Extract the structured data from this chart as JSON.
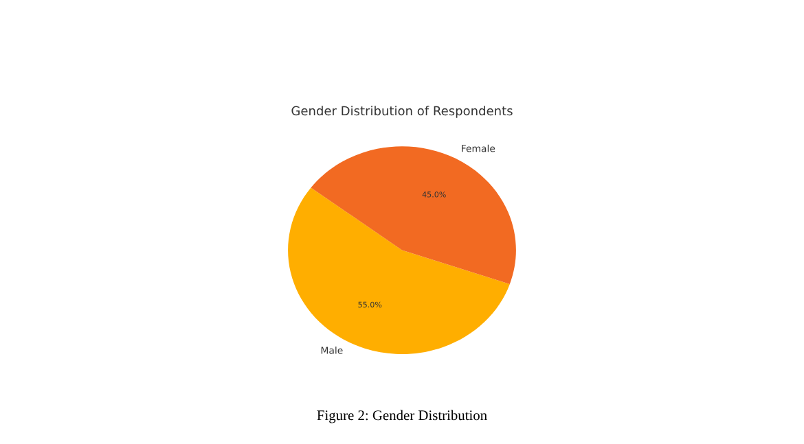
{
  "chart_data": {
    "type": "pie",
    "title": "Gender Distribution of Respondents",
    "categories": [
      "Male",
      "Female"
    ],
    "values": [
      55,
      45
    ],
    "colors": [
      "#ffae00",
      "#f26a22"
    ],
    "value_labels": [
      "55.0%",
      "45.0%"
    ],
    "annotations": [
      "Figure 2: Gender Distribution"
    ]
  }
}
